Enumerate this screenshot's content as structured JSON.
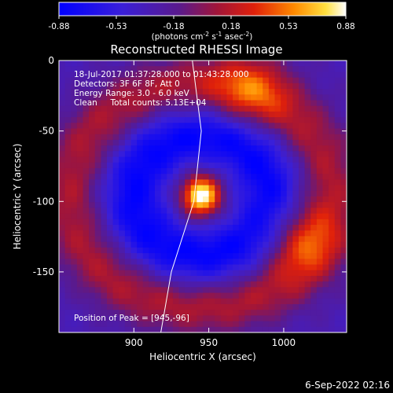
{
  "chart_data": {
    "type": "heatmap",
    "title": "Reconstructed RHESSI Image",
    "xlabel": "Heliocentric X (arcsec)",
    "ylabel": "Heliocentric Y (arcsec)",
    "xlim": [
      850,
      1042
    ],
    "ylim": [
      -193,
      0
    ],
    "x_ticks": [
      900,
      950,
      1000
    ],
    "y_ticks": [
      0,
      -50,
      -100,
      -150
    ],
    "colorbar": {
      "ticks": [
        "-0.88",
        "-0.53",
        "-0.18",
        "0.18",
        "0.53",
        "0.88"
      ],
      "min": -0.88,
      "max": 0.88,
      "unit_label_parts": [
        "(photons cm",
        "-2",
        " s",
        "-1",
        " asec",
        "-2",
        ")"
      ]
    },
    "annotations": [
      "18-Jul-2017 01:37:28.000 to 01:43:28.000",
      "Detectors: 3F 6F 8F, Att 0",
      "Energy Range: 3.0 - 6.0 keV",
      "Clean     Total counts: 5.13E+04"
    ],
    "peak_label": "Position of Peak = [945,-96]",
    "peak": {
      "x": 945,
      "y": -96,
      "value": 0.88
    },
    "limb": [
      [
        939,
        0
      ],
      [
        945,
        -50
      ],
      [
        940,
        -100
      ],
      [
        925,
        -150
      ],
      [
        918,
        -193
      ]
    ],
    "features": [
      {
        "kind": "source",
        "x": 945,
        "y": -96,
        "sx": 9,
        "sy": 10,
        "value": 1.0
      },
      {
        "kind": "ring",
        "x": 945,
        "y": -96,
        "radius": 80,
        "width": 14,
        "value": 0.45
      },
      {
        "kind": "negative-ring",
        "x": 945,
        "y": -96,
        "radius": 42,
        "width": 14,
        "value": -0.55
      },
      {
        "kind": "hot-spot",
        "x": 978,
        "y": -20,
        "value": 0.75
      },
      {
        "kind": "hot-spot",
        "x": 1012,
        "y": -128,
        "value": 0.72
      }
    ]
  },
  "footer": {
    "timestamp": "6-Sep-2022 02:16"
  }
}
